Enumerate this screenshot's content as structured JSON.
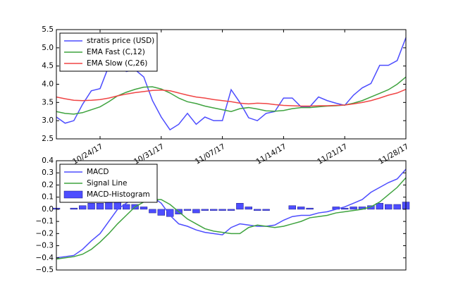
{
  "chart_data": [
    {
      "type": "line",
      "x": [
        "2017-10-19",
        "2017-10-20",
        "2017-10-21",
        "2017-10-22",
        "2017-10-23",
        "2017-10-24",
        "2017-10-25",
        "2017-10-26",
        "2017-10-27",
        "2017-10-28",
        "2017-10-29",
        "2017-10-30",
        "2017-10-31",
        "2017-11-01",
        "2017-11-02",
        "2017-11-03",
        "2017-11-04",
        "2017-11-05",
        "2017-11-06",
        "2017-11-07",
        "2017-11-08",
        "2017-11-09",
        "2017-11-10",
        "2017-11-11",
        "2017-11-12",
        "2017-11-13",
        "2017-11-14",
        "2017-11-15",
        "2017-11-16",
        "2017-11-17",
        "2017-11-18",
        "2017-11-19",
        "2017-11-20",
        "2017-11-21",
        "2017-11-22",
        "2017-11-23",
        "2017-11-24",
        "2017-11-25",
        "2017-11-26",
        "2017-11-27",
        "2017-11-28"
      ],
      "xlim": [
        "2017-10-19",
        "2017-11-28"
      ],
      "xticks": [
        {
          "value": "2017-10-24",
          "label": "10/24/17"
        },
        {
          "value": "2017-10-31",
          "label": "10/31/17"
        },
        {
          "value": "2017-11-07",
          "label": "11/07/17"
        },
        {
          "value": "2017-11-14",
          "label": "11/14/17"
        },
        {
          "value": "2017-11-21",
          "label": "11/21/17"
        },
        {
          "value": "2017-11-28",
          "label": "11/28/17"
        }
      ],
      "ylim": [
        2.5,
        5.5
      ],
      "yticks": [
        2.5,
        {
          "value": 3,
          "label": "3.0"
        },
        3.5,
        {
          "value": 4,
          "label": "4.0"
        },
        4.5,
        {
          "value": 5,
          "label": "5.0"
        },
        5.5
      ],
      "legend": "upper left",
      "series": [
        {
          "name": "stratis price (USD)",
          "color": "#4d4dff",
          "values": [
            3.1,
            2.93,
            3.0,
            3.45,
            3.82,
            3.88,
            4.5,
            4.65,
            4.35,
            4.4,
            4.2,
            3.55,
            3.1,
            2.75,
            2.9,
            3.2,
            2.9,
            3.1,
            3.0,
            3.0,
            3.85,
            3.5,
            3.08,
            3.0,
            3.2,
            3.25,
            3.62,
            3.62,
            3.38,
            3.38,
            3.65,
            3.55,
            3.48,
            3.42,
            3.7,
            3.9,
            4.02,
            4.52,
            4.52,
            4.65,
            5.28
          ]
        },
        {
          "name": "EMA Fast (C,12)",
          "color": "#3fa33f",
          "values": [
            3.25,
            3.2,
            3.18,
            3.22,
            3.3,
            3.38,
            3.52,
            3.68,
            3.78,
            3.86,
            3.92,
            3.93,
            3.87,
            3.76,
            3.62,
            3.52,
            3.47,
            3.4,
            3.35,
            3.3,
            3.25,
            3.33,
            3.36,
            3.32,
            3.27,
            3.26,
            3.28,
            3.33,
            3.36,
            3.36,
            3.38,
            3.4,
            3.41,
            3.43,
            3.48,
            3.55,
            3.65,
            3.75,
            3.85,
            4.0,
            4.2
          ]
        },
        {
          "name": "EMA Slow (C,26)",
          "color": "#f04545",
          "values": [
            3.65,
            3.6,
            3.56,
            3.55,
            3.56,
            3.58,
            3.62,
            3.68,
            3.73,
            3.77,
            3.8,
            3.83,
            3.84,
            3.82,
            3.76,
            3.7,
            3.65,
            3.62,
            3.58,
            3.55,
            3.52,
            3.48,
            3.46,
            3.48,
            3.47,
            3.44,
            3.42,
            3.41,
            3.4,
            3.4,
            3.41,
            3.41,
            3.42,
            3.43,
            3.46,
            3.5,
            3.55,
            3.62,
            3.7,
            3.76,
            3.86
          ]
        }
      ]
    },
    {
      "type": "line",
      "x": [
        "2017-10-19",
        "2017-10-20",
        "2017-10-21",
        "2017-10-22",
        "2017-10-23",
        "2017-10-24",
        "2017-10-25",
        "2017-10-26",
        "2017-10-27",
        "2017-10-28",
        "2017-10-29",
        "2017-10-30",
        "2017-10-31",
        "2017-11-01",
        "2017-11-02",
        "2017-11-03",
        "2017-11-04",
        "2017-11-05",
        "2017-11-06",
        "2017-11-07",
        "2017-11-08",
        "2017-11-09",
        "2017-11-10",
        "2017-11-11",
        "2017-11-12",
        "2017-11-13",
        "2017-11-14",
        "2017-11-15",
        "2017-11-16",
        "2017-11-17",
        "2017-11-18",
        "2017-11-19",
        "2017-11-20",
        "2017-11-21",
        "2017-11-22",
        "2017-11-23",
        "2017-11-24",
        "2017-11-25",
        "2017-11-26",
        "2017-11-27",
        "2017-11-28"
      ],
      "xlim": [
        "2017-10-19",
        "2017-11-28"
      ],
      "ylim": [
        -0.5,
        0.4
      ],
      "yticks": [
        {
          "value": -0.5,
          "label": "−0.5"
        },
        {
          "value": -0.4,
          "label": "−0.4"
        },
        {
          "value": -0.3,
          "label": "−0.3"
        },
        {
          "value": -0.2,
          "label": "−0.2"
        },
        {
          "value": -0.1,
          "label": "−0.1"
        },
        {
          "value": 0,
          "label": "0.0"
        },
        0.1,
        0.2,
        0.3,
        0.4
      ],
      "legend": "upper left",
      "series": [
        {
          "name": "MACD",
          "color": "#4d4dff",
          "values": [
            -0.4,
            -0.39,
            -0.38,
            -0.33,
            -0.26,
            -0.2,
            -0.1,
            0.0,
            0.05,
            0.09,
            0.12,
            0.1,
            0.05,
            -0.05,
            -0.12,
            -0.14,
            -0.17,
            -0.19,
            -0.2,
            -0.21,
            -0.15,
            -0.12,
            -0.13,
            -0.14,
            -0.14,
            -0.13,
            -0.09,
            -0.06,
            -0.05,
            -0.05,
            -0.03,
            -0.02,
            0.0,
            0.02,
            0.05,
            0.08,
            0.14,
            0.18,
            0.22,
            0.25,
            0.33
          ]
        },
        {
          "name": "Signal Line",
          "color": "#3fa33f",
          "values": [
            -0.41,
            -0.4,
            -0.39,
            -0.37,
            -0.33,
            -0.27,
            -0.2,
            -0.12,
            -0.05,
            0.02,
            0.06,
            0.08,
            0.08,
            0.04,
            -0.02,
            -0.08,
            -0.12,
            -0.16,
            -0.18,
            -0.19,
            -0.2,
            -0.2,
            -0.15,
            -0.13,
            -0.14,
            -0.15,
            -0.14,
            -0.12,
            -0.1,
            -0.07,
            -0.06,
            -0.05,
            -0.03,
            -0.02,
            -0.01,
            0.0,
            0.02,
            0.06,
            0.12,
            0.18,
            0.26
          ]
        },
        {
          "name": "MACD-Histogram",
          "type": "bar",
          "color": "#4d4dff",
          "values": [
            0.01,
            0.0,
            0.01,
            0.03,
            0.05,
            0.05,
            0.08,
            0.07,
            0.04,
            0.04,
            0.02,
            -0.03,
            -0.05,
            -0.06,
            -0.04,
            -0.01,
            -0.03,
            -0.01,
            -0.01,
            -0.01,
            -0.01,
            0.05,
            0.02,
            -0.01,
            -0.01,
            0.0,
            0.0,
            0.03,
            0.02,
            0.01,
            0.0,
            0.0,
            0.02,
            0.01,
            0.02,
            0.02,
            0.03,
            0.05,
            0.04,
            0.04,
            0.06
          ]
        }
      ]
    }
  ]
}
